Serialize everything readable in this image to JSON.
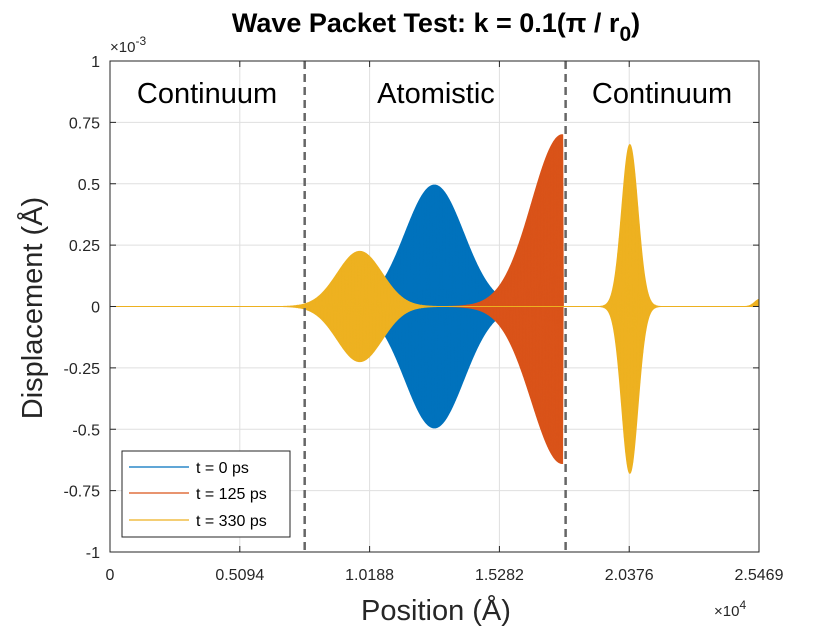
{
  "chart_data": {
    "type": "line",
    "title": "Wave Packet Test: k = 0.1(π / r",
    "title_subscript": "0",
    "title_close": ")",
    "xlabel": "Position (Å)",
    "ylabel": "Displacement (Å)",
    "x_exponent_base": "×10",
    "x_exponent_power": "4",
    "y_exponent_base": "×10",
    "y_exponent_power": "-3",
    "xlim": [
      0,
      2.5469
    ],
    "ylim": [
      -1,
      1
    ],
    "x_ticks": [
      0,
      0.5094,
      1.0188,
      1.5282,
      2.0376,
      2.5469
    ],
    "x_tick_labels": [
      "0",
      "0.5094",
      "1.0188",
      "1.5282",
      "2.0376",
      "2.5469"
    ],
    "y_ticks": [
      -1,
      -0.75,
      -0.5,
      -0.25,
      0,
      0.25,
      0.5,
      0.75,
      1
    ],
    "y_tick_labels": [
      "-1",
      "-0.75",
      "-0.5",
      "-0.25",
      "0",
      "0.25",
      "0.5",
      "0.75",
      "1"
    ],
    "grid": true,
    "boundaries": [
      0.764,
      1.788
    ],
    "regions": [
      "Continuum",
      "Atomistic",
      "Continuum"
    ],
    "legend": {
      "location": "bottom-left",
      "entries": [
        "t = 0 ps",
        "t = 125 ps",
        "t = 330 ps"
      ]
    },
    "series": [
      {
        "name": "t = 0 ps",
        "color": "#0072BD",
        "packets": [
          {
            "center": 1.273,
            "amplitude": 0.495,
            "sigma": 0.115,
            "shape": "gaussian"
          }
        ]
      },
      {
        "name": "t = 125 ps",
        "color": "#D95319",
        "packets": [
          {
            "center": 1.745,
            "amplitude_pos": 0.7,
            "amplitude_neg": 0.64,
            "peak": 1.775,
            "sigma": 0.12,
            "shape": "skewed-cut"
          }
        ]
      },
      {
        "name": "t = 330 ps",
        "color": "#EDB120",
        "packets": [
          {
            "center": 0.98,
            "amplitude": 0.225,
            "sigma": 0.088,
            "shape": "gaussian"
          },
          {
            "center": 2.04,
            "amplitude_pos": 0.66,
            "amplitude_neg": 0.68,
            "sigma": 0.032,
            "shape": "gaussian"
          },
          {
            "tail": 2.55,
            "amplitude": 0.03
          }
        ]
      }
    ]
  }
}
